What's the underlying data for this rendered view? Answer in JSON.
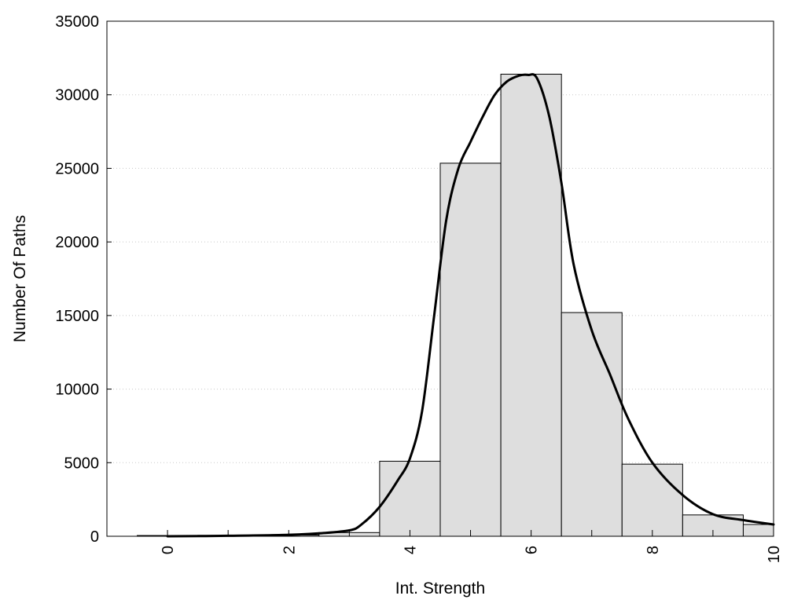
{
  "chart_data": {
    "type": "bar",
    "title": "",
    "xlabel": "Int. Strength",
    "ylabel": "Number Of Paths",
    "xlim": [
      -1,
      10
    ],
    "ylim": [
      0,
      35000
    ],
    "grid": "horizontal-dotted",
    "x_ticks": [
      "0",
      "2",
      "4",
      "6",
      "8",
      "10"
    ],
    "y_ticks": [
      "0",
      "5000",
      "10000",
      "15000",
      "20000",
      "25000",
      "30000",
      "35000"
    ],
    "bins": [
      {
        "start": -0.5,
        "end": 0.5,
        "value": 50
      },
      {
        "start": 0.5,
        "end": 1.5,
        "value": 60
      },
      {
        "start": 1.5,
        "end": 2.5,
        "value": 80
      },
      {
        "start": 2.5,
        "end": 3.5,
        "value": 250
      },
      {
        "start": 3.5,
        "end": 4.5,
        "value": 5100
      },
      {
        "start": 4.5,
        "end": 5.5,
        "value": 25350
      },
      {
        "start": 5.5,
        "end": 6.5,
        "value": 31400
      },
      {
        "start": 6.5,
        "end": 7.5,
        "value": 15200
      },
      {
        "start": 7.5,
        "end": 8.5,
        "value": 4900
      },
      {
        "start": 8.5,
        "end": 9.5,
        "value": 1450
      },
      {
        "start": 9.5,
        "end": 10.5,
        "value": 800
      }
    ],
    "curve": {
      "x": [
        0,
        1,
        2,
        2.5,
        3,
        3.2,
        3.5,
        3.8,
        4,
        4.2,
        4.4,
        4.6,
        4.8,
        5,
        5.2,
        5.4,
        5.6,
        5.8,
        5.95,
        6.1,
        6.3,
        6.5,
        6.7,
        7,
        7.3,
        7.6,
        8,
        8.5,
        9,
        9.5,
        10
      ],
      "y": [
        0,
        30,
        100,
        200,
        400,
        800,
        2000,
        3800,
        5300,
        8500,
        15000,
        21500,
        25000,
        26800,
        28500,
        30000,
        30900,
        31300,
        31350,
        31100,
        28500,
        24000,
        18500,
        14000,
        11000,
        8000,
        5000,
        2800,
        1500,
        1100,
        800
      ]
    }
  }
}
